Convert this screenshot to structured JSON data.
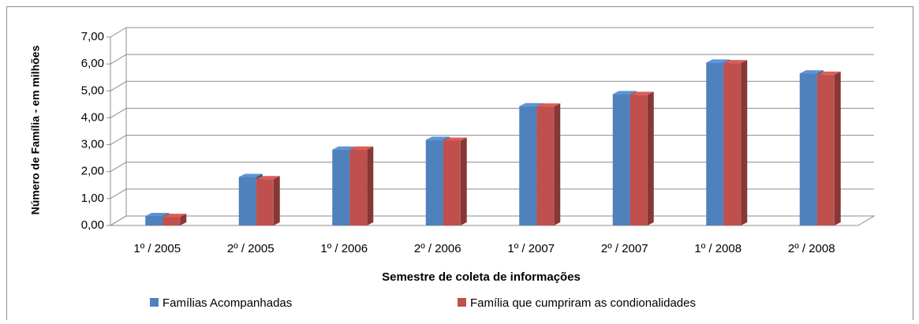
{
  "chart_data": {
    "type": "bar3d",
    "categories": [
      "1º / 2005",
      "2º / 2005",
      "1º / 2006",
      "2º / 2006",
      "1º / 2007",
      "2º / 2007",
      "1º / 2008",
      "2º / 2008"
    ],
    "series": [
      {
        "name": "Famílias Acompanhadas",
        "color": "#4f81bd",
        "values": [
          0.35,
          1.8,
          2.82,
          3.18,
          4.43,
          4.88,
          6.05,
          5.65
        ]
      },
      {
        "name": "Família que cumpriram as condionalidades",
        "color": "#c0504d",
        "values": [
          0.32,
          1.72,
          2.82,
          3.15,
          4.42,
          4.85,
          6.03,
          5.6
        ]
      }
    ],
    "ylabel": "Número de Família - em milhões",
    "xlabel": "Semestre de coleta de informações",
    "ylim": [
      0,
      7
    ],
    "yticks": [
      {
        "value": 0,
        "label": "0,00"
      },
      {
        "value": 1,
        "label": "1,00"
      },
      {
        "value": 2,
        "label": "2,00"
      },
      {
        "value": 3,
        "label": "3,00"
      },
      {
        "value": 4,
        "label": "4,00"
      },
      {
        "value": 5,
        "label": "5,00"
      },
      {
        "value": 6,
        "label": "6,00"
      },
      {
        "value": 7,
        "label": "7,00"
      }
    ],
    "grid": true,
    "legend": "bottom"
  }
}
